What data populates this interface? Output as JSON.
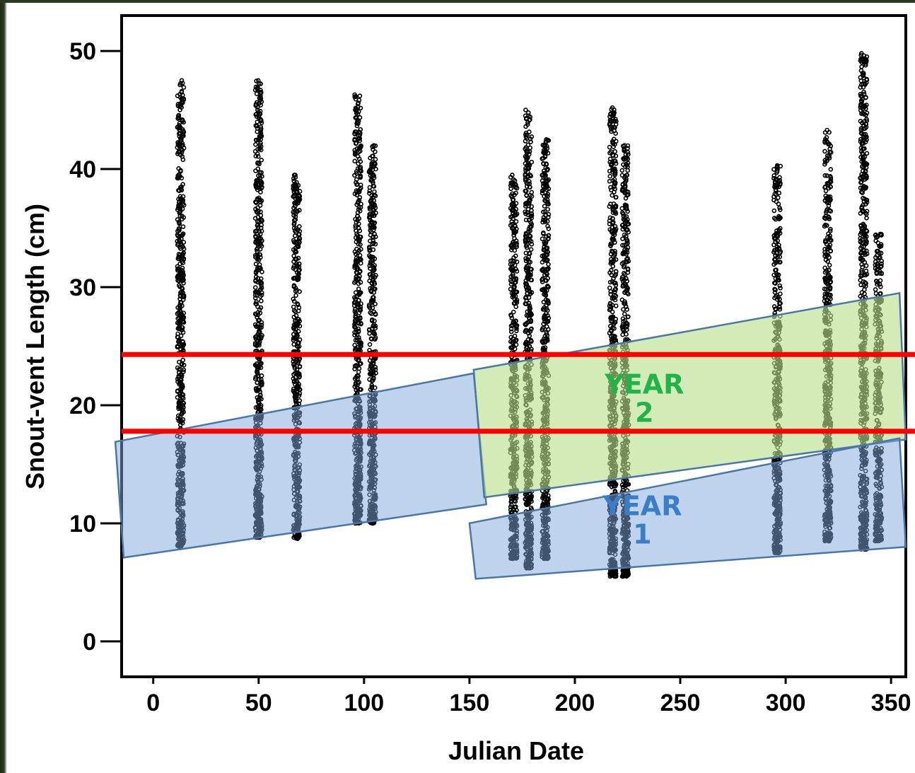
{
  "chart_data": {
    "type": "scatter",
    "xlabel": "Julian Date",
    "ylabel": "Snout-vent Length (cm)",
    "xlim": [
      -15,
      357
    ],
    "ylim": [
      -3,
      53
    ],
    "x_ticks": [
      0,
      50,
      100,
      150,
      200,
      250,
      300,
      350
    ],
    "y_ticks": [
      0,
      10,
      20,
      30,
      40,
      50
    ],
    "grid": false,
    "series": [
      {
        "point_color": "#000000",
        "clusters": [
          {
            "x": 13,
            "ymin": 8.0,
            "ymax": 47.5
          },
          {
            "x": 50,
            "ymin": 8.8,
            "ymax": 47.5
          },
          {
            "x": 68,
            "ymin": 8.7,
            "ymax": 39.5
          },
          {
            "x": 97,
            "ymin": 10.0,
            "ymax": 46.3
          },
          {
            "x": 104,
            "ymin": 10.0,
            "ymax": 42.0
          },
          {
            "x": 171,
            "ymin": 7.0,
            "ymax": 39.5
          },
          {
            "x": 178,
            "ymin": 6.2,
            "ymax": 45.0
          },
          {
            "x": 186,
            "ymin": 7.0,
            "ymax": 42.5
          },
          {
            "x": 218,
            "ymin": 5.5,
            "ymax": 45.2
          },
          {
            "x": 224,
            "ymin": 5.5,
            "ymax": 42.0
          },
          {
            "x": 296,
            "ymin": 7.5,
            "ymax": 40.3
          },
          {
            "x": 320,
            "ymin": 8.5,
            "ymax": 43.3
          },
          {
            "x": 337,
            "ymin": 7.8,
            "ymax": 49.8
          },
          {
            "x": 344,
            "ymin": 8.5,
            "ymax": 34.5
          }
        ]
      }
    ],
    "reference_lines": [
      {
        "y": 24.3,
        "color": "#ff0000"
      },
      {
        "y": 17.8,
        "color": "#ff0000"
      }
    ],
    "regions": [
      {
        "name": "year1-left",
        "fill": "#7fa9d9",
        "opacity": 0.5,
        "stroke": "#4a76a8",
        "corners": [
          [
            -18,
            16.9
          ],
          [
            152,
            22.7
          ],
          [
            158,
            11.6
          ],
          [
            -14,
            7.1
          ]
        ]
      },
      {
        "name": "year2",
        "fill": "#b8e08a",
        "opacity": 0.62,
        "stroke": "#4a76a8",
        "corners": [
          [
            152,
            23.0
          ],
          [
            354,
            29.5
          ],
          [
            357,
            17.1
          ],
          [
            157,
            12.2
          ]
        ]
      },
      {
        "name": "year1-right",
        "fill": "#7fa9d9",
        "opacity": 0.5,
        "stroke": "#4a76a8",
        "corners": [
          [
            150,
            10.0
          ],
          [
            354,
            17.2
          ],
          [
            357,
            8.0
          ],
          [
            153,
            5.3
          ]
        ]
      }
    ],
    "annotations": [
      {
        "lines": [
          "YEAR",
          "2"
        ],
        "color": "#1fb34a",
        "x": 233,
        "y": 21.0
      },
      {
        "lines": [
          "YEAR",
          "1"
        ],
        "color": "#3a7ec9",
        "x": 232,
        "y": 10.7
      }
    ]
  }
}
